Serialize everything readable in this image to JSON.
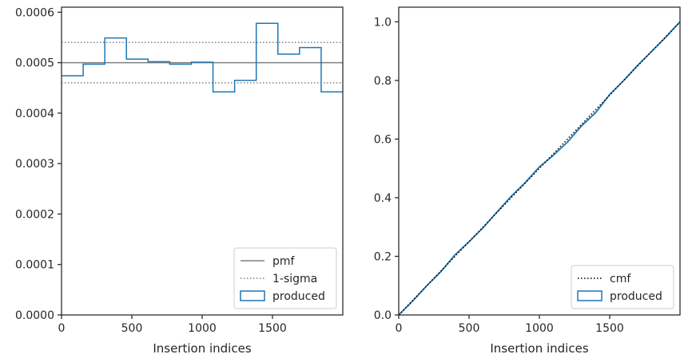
{
  "chart_data": [
    {
      "type": "histogram-step",
      "xlabel": "Insertion indices",
      "ylabel": "",
      "xlim": [
        0,
        2000
      ],
      "ylim": [
        0,
        0.00061
      ],
      "xticks": [
        0,
        500,
        1000,
        1500
      ],
      "xtick_labels": [
        "0",
        "500",
        "1000",
        "1500"
      ],
      "yticks": [
        0,
        0.0001,
        0.0002,
        0.0003,
        0.0004,
        0.0005,
        0.0006
      ],
      "ytick_labels": [
        "0.0000",
        "0.0001",
        "0.0002",
        "0.0003",
        "0.0004",
        "0.0005",
        "0.0006"
      ],
      "grid": false,
      "legend_position": "lower-right",
      "pmf": 0.0005,
      "sigma_upper": 0.00054,
      "sigma_lower": 0.00046,
      "bin_edges": [
        0,
        153.8,
        307.7,
        461.5,
        615.4,
        769.2,
        923.1,
        1076.9,
        1230.8,
        1384.6,
        1538.5,
        1692.3,
        1846.2,
        2000
      ],
      "produced": [
        0.000474,
        0.000497,
        0.000549,
        0.000507,
        0.000502,
        0.000497,
        0.000501,
        0.000442,
        0.000465,
        0.000578,
        0.000517,
        0.00053,
        0.000442
      ],
      "legend": [
        {
          "label": "pmf",
          "style": "solid",
          "color": "#808080"
        },
        {
          "label": "1-sigma",
          "style": "dotted",
          "color": "#808080"
        },
        {
          "label": "produced",
          "style": "box",
          "color": "#1f77b4"
        }
      ]
    },
    {
      "type": "line",
      "xlabel": "Insertion indices",
      "ylabel": "",
      "xlim": [
        0,
        2000
      ],
      "ylim": [
        0,
        1.05
      ],
      "xticks": [
        0,
        500,
        1000,
        1500
      ],
      "xtick_labels": [
        "0",
        "500",
        "1000",
        "1500"
      ],
      "yticks": [
        0,
        0.2,
        0.4,
        0.6,
        0.8,
        1.0
      ],
      "ytick_labels": [
        "0.0",
        "0.2",
        "0.4",
        "0.6",
        "0.8",
        "1.0"
      ],
      "grid": false,
      "legend_position": "lower-right",
      "cmf": {
        "x": [
          0,
          2000
        ],
        "y": [
          0,
          1
        ]
      },
      "produced": {
        "x": [
          0,
          100,
          200,
          300,
          400,
          500,
          600,
          700,
          800,
          900,
          1000,
          1100,
          1200,
          1300,
          1400,
          1500,
          1600,
          1700,
          1800,
          1900,
          2000
        ],
        "y": [
          0,
          0.048,
          0.1,
          0.148,
          0.205,
          0.25,
          0.298,
          0.352,
          0.405,
          0.452,
          0.505,
          0.545,
          0.59,
          0.645,
          0.69,
          0.752,
          0.8,
          0.852,
          0.9,
          0.948,
          1.0
        ]
      },
      "legend": [
        {
          "label": "cmf",
          "style": "dotted",
          "color": "#000000"
        },
        {
          "label": "produced",
          "style": "box",
          "color": "#1f77b4"
        }
      ]
    }
  ]
}
